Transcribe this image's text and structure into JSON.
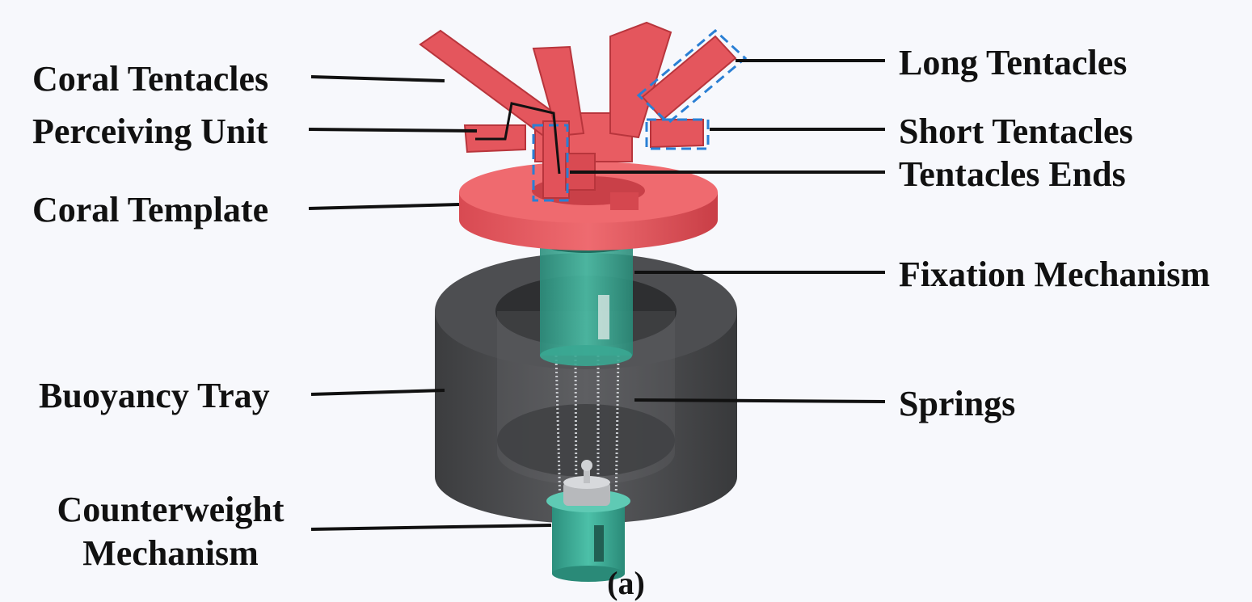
{
  "figure": {
    "caption": "(a)",
    "left_labels": {
      "coral_tentacles": "Coral Tentacles",
      "perceiving_unit": "Perceiving Unit",
      "coral_template": "Coral Template",
      "buoyancy_tray": "Buoyancy Tray",
      "counterweight_line1": "Counterweight",
      "counterweight_line2": "Mechanism"
    },
    "right_labels": {
      "long_tentacles": "Long Tentacles",
      "short_tentacles": "Short Tentacles",
      "tentacles_ends": "Tentacles Ends",
      "fixation_mechanism": "Fixation Mechanism",
      "springs": "Springs"
    },
    "colors": {
      "coral_red": "#e4565d",
      "coral_dark": "#b8353c",
      "tray_gray": "#4a4b4d",
      "tray_dark": "#2b2c2e",
      "teal": "#3aa792",
      "teal_dark": "#1f6f60",
      "highlight_blue": "#2a7fd4",
      "leader_line": "#111111"
    }
  }
}
